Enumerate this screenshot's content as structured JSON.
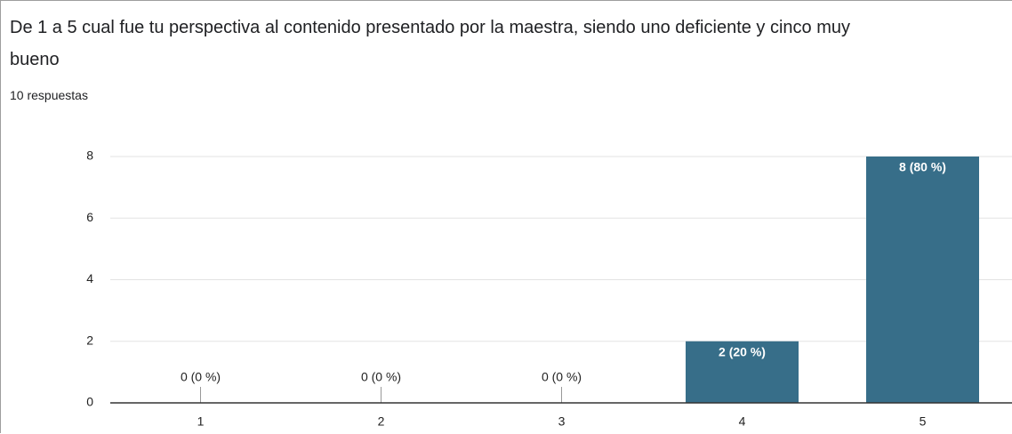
{
  "chart_data": {
    "type": "bar",
    "title": "De 1 a 5 cual fue tu perspectiva al contenido presentado por la maestra, siendo uno deficiente y cinco muy bueno",
    "subtitle": "10 respuestas",
    "categories": [
      "1",
      "2",
      "3",
      "4",
      "5"
    ],
    "values": [
      0,
      0,
      0,
      2,
      8
    ],
    "value_labels": [
      "0 (0 %)",
      "0 (0 %)",
      "0 (0 %)",
      "2 (20 %)",
      "8 (80 %)"
    ],
    "color": "#376e89",
    "ylim": [
      0,
      8
    ],
    "yticks": [
      0,
      2,
      4,
      6,
      8
    ],
    "grid": true
  }
}
